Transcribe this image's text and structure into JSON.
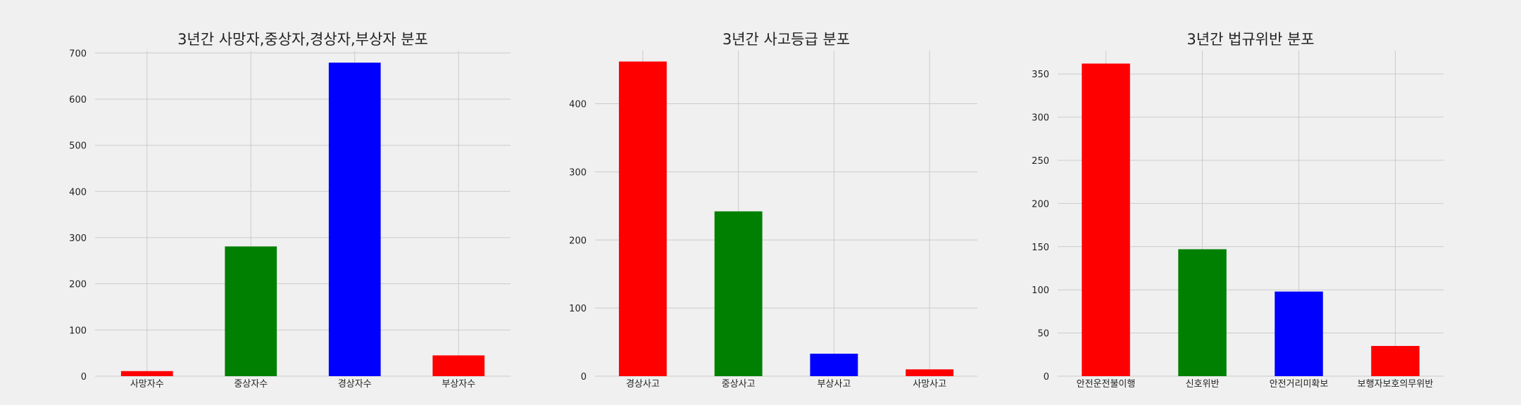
{
  "chart_data": [
    {
      "type": "bar",
      "title": "3년간 사망자,중상자,경상자,부상자 분포",
      "xlabel": "",
      "ylabel": "",
      "categories": [
        "사망자수",
        "중상자수",
        "경상자수",
        "부상자수"
      ],
      "values": [
        11,
        281,
        679,
        45
      ],
      "colors": [
        "#ff0000",
        "#008000",
        "#0000ff",
        "#ff0000"
      ],
      "ylim": [
        0,
        705
      ],
      "yticks": [
        0,
        100,
        200,
        300,
        400,
        500,
        600,
        700
      ],
      "grid": true,
      "legend": "none"
    },
    {
      "type": "bar",
      "title": "3년간 사고등급 분포",
      "xlabel": "",
      "ylabel": "",
      "categories": [
        "경상사고",
        "중상사고",
        "부상사고",
        "사망사고"
      ],
      "values": [
        462,
        242,
        33,
        10
      ],
      "colors": [
        "#ff0000",
        "#008000",
        "#0000ff",
        "#ff0000"
      ],
      "ylim": [
        0,
        478
      ],
      "yticks": [
        0,
        100,
        200,
        300,
        400
      ],
      "grid": true,
      "legend": "none"
    },
    {
      "type": "bar",
      "title": "3년간 법규위반 분포",
      "xlabel": "",
      "ylabel": "",
      "categories": [
        "안전운전불이행",
        "신호위반",
        "안전거리미확보",
        "보행자보호의무위반"
      ],
      "values": [
        362,
        147,
        98,
        35
      ],
      "colors": [
        "#ff0000",
        "#008000",
        "#0000ff",
        "#ff0000"
      ],
      "ylim": [
        0,
        377
      ],
      "yticks": [
        0,
        50,
        100,
        150,
        200,
        250,
        300,
        350
      ],
      "grid": true,
      "legend": "none"
    }
  ]
}
